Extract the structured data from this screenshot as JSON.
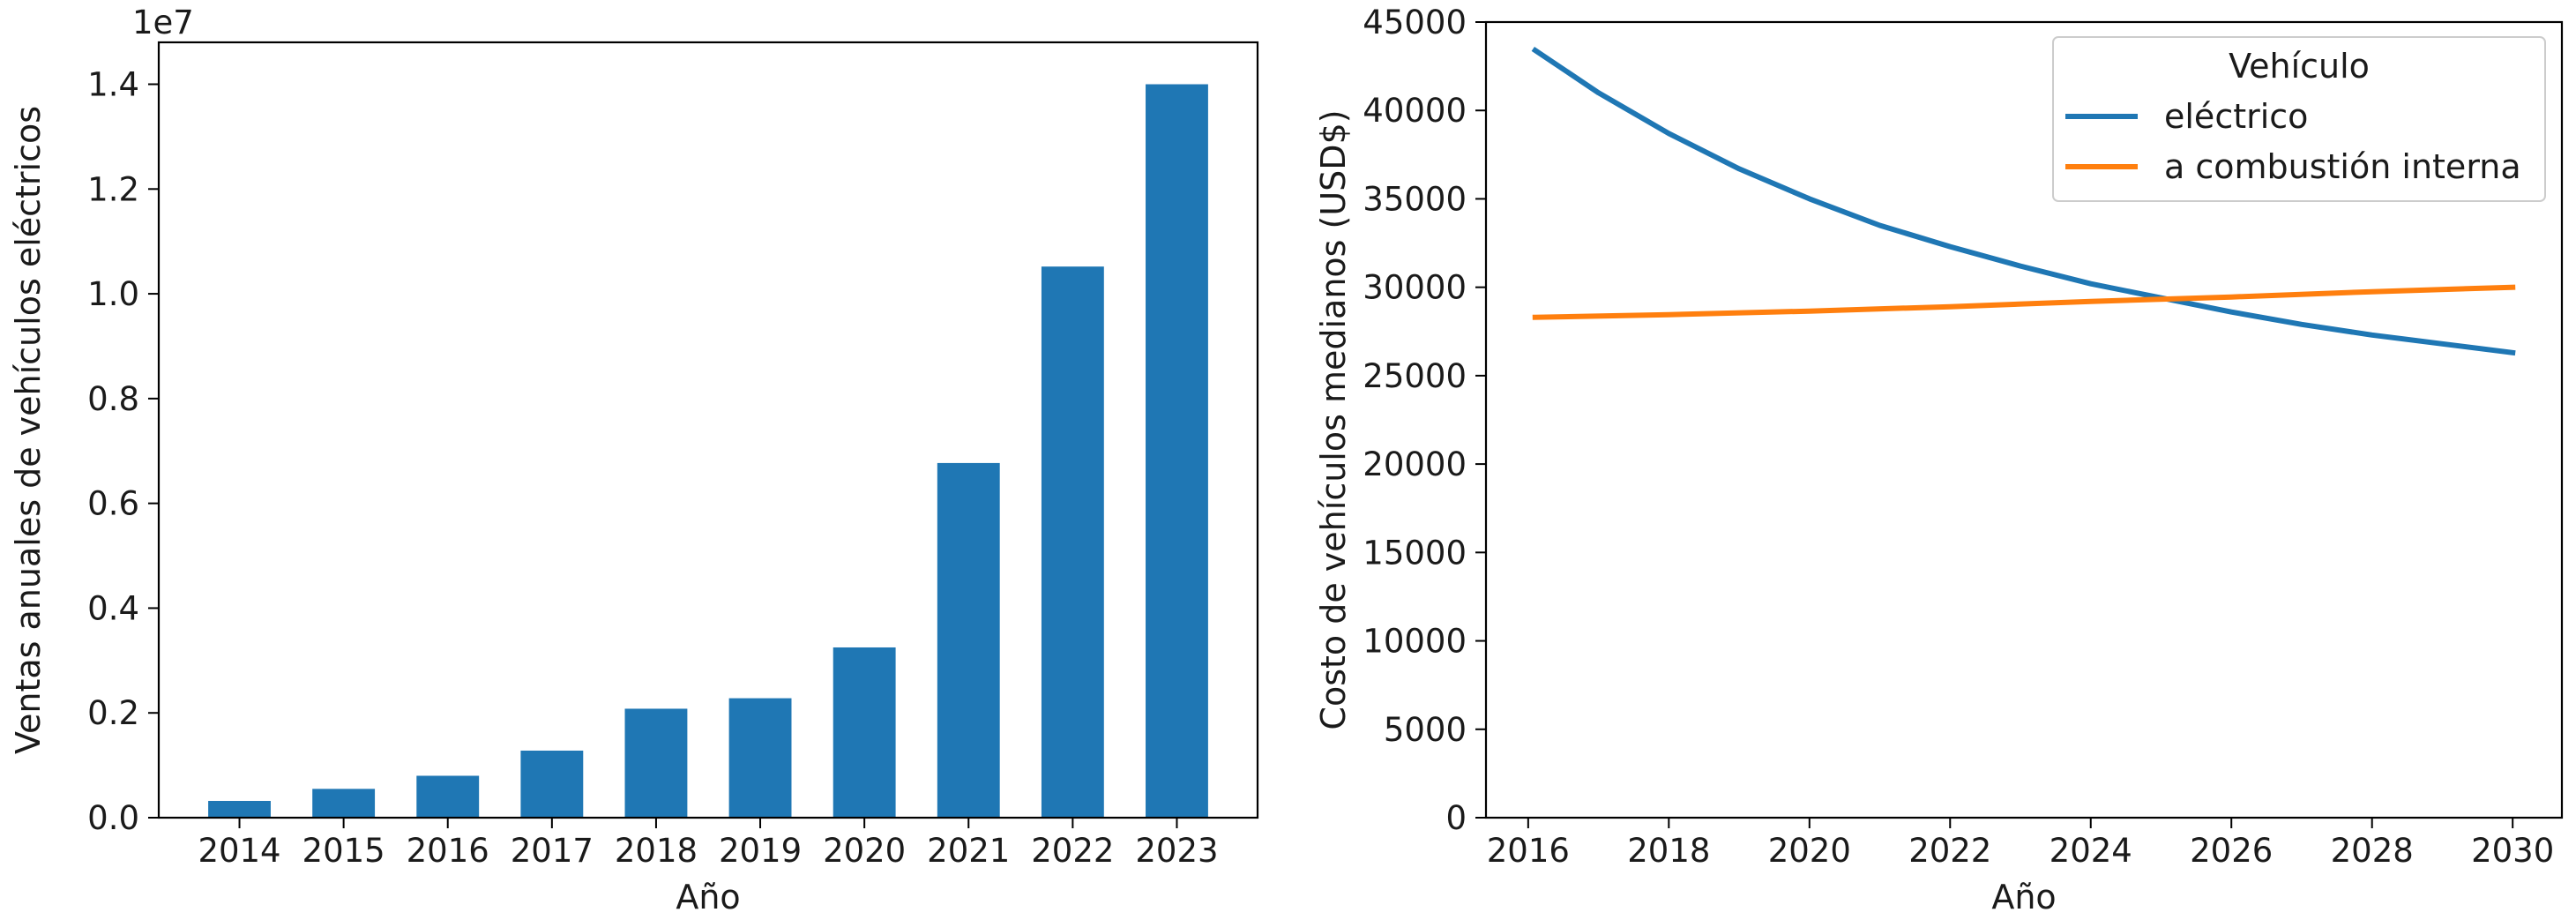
{
  "chart_data": [
    {
      "type": "bar",
      "title": "",
      "xlabel": "Año",
      "ylabel": "Ventas anuales de vehículos eléctricos",
      "offset_text": "1e7",
      "ylim": [
        0,
        14800000.0
      ],
      "ytick_values": [
        0,
        2000000,
        4000000,
        6000000,
        8000000,
        10000000,
        12000000,
        14000000
      ],
      "ytick_labels": [
        "0.0",
        "0.2",
        "0.4",
        "0.6",
        "0.8",
        "1.0",
        "1.2",
        "1.4"
      ],
      "categories": [
        "2014",
        "2015",
        "2016",
        "2017",
        "2018",
        "2019",
        "2020",
        "2021",
        "2022",
        "2023"
      ],
      "values": [
        320000,
        550000,
        800000,
        1280000,
        2080000,
        2280000,
        3250000,
        6770000,
        10520000,
        14000000
      ],
      "color": "#1f77b4",
      "grid": false
    },
    {
      "type": "line",
      "title": "",
      "xlabel": "Año",
      "ylabel": "Costo de vehículos medianos (USD$)",
      "xlim": [
        2015.4,
        2030.7
      ],
      "ylim": [
        0,
        45000
      ],
      "xtick_values": [
        2016,
        2018,
        2020,
        2022,
        2024,
        2026,
        2028,
        2030
      ],
      "xtick_labels": [
        "2016",
        "2018",
        "2020",
        "2022",
        "2024",
        "2026",
        "2028",
        "2030"
      ],
      "ytick_values": [
        0,
        5000,
        10000,
        15000,
        20000,
        25000,
        30000,
        35000,
        40000,
        45000
      ],
      "ytick_labels": [
        "0",
        "5000",
        "10000",
        "15000",
        "20000",
        "25000",
        "30000",
        "35000",
        "40000",
        "45000"
      ],
      "legend": {
        "title": "Vehículo",
        "placement": "top-right"
      },
      "series": [
        {
          "name": "eléctrico",
          "color": "#1f77b4",
          "x": [
            2016.1,
            2017,
            2018,
            2019,
            2020,
            2021,
            2022,
            2023,
            2024,
            2025,
            2026,
            2027,
            2028,
            2029,
            2030
          ],
          "y": [
            43400,
            41000,
            38700,
            36700,
            35000,
            33500,
            32300,
            31200,
            30200,
            29400,
            28600,
            27900,
            27300,
            26800,
            26300
          ]
        },
        {
          "name": "a combustión interna",
          "color": "#ff7f0e",
          "x": [
            2016.1,
            2018,
            2020,
            2022,
            2024,
            2026,
            2028,
            2030
          ],
          "y": [
            28300,
            28450,
            28650,
            28900,
            29200,
            29450,
            29750,
            30000
          ]
        }
      ],
      "grid": false
    }
  ]
}
